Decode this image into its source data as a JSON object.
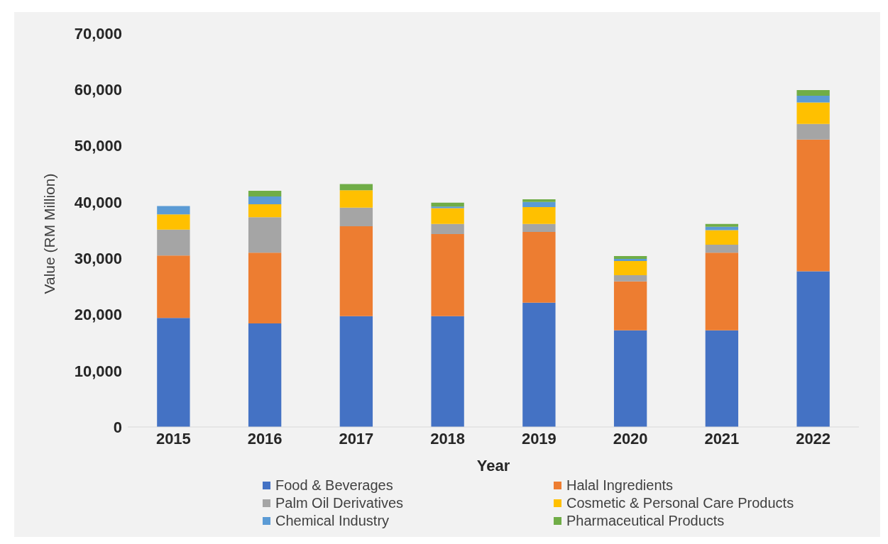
{
  "chart_data": {
    "type": "bar",
    "stacked": true,
    "xlabel": "Year",
    "ylabel": "Value (RM Million)",
    "categories": [
      "2015",
      "2016",
      "2017",
      "2018",
      "2019",
      "2020",
      "2021",
      "2022"
    ],
    "series": [
      {
        "name": "Food & Beverages",
        "color": "#4472c4",
        "values": [
          19400,
          18400,
          19700,
          19700,
          22100,
          17200,
          17200,
          27700
        ]
      },
      {
        "name": "Halal Ingredients",
        "color": "#ed7d31",
        "values": [
          11100,
          12600,
          16000,
          14600,
          12600,
          8700,
          13800,
          23400
        ]
      },
      {
        "name": "Palm Oil Derivatives",
        "color": "#a5a5a5",
        "values": [
          4600,
          6300,
          3300,
          1800,
          1400,
          1100,
          1400,
          2800
        ]
      },
      {
        "name": "Cosmetic & Personal Care Products",
        "color": "#ffc000",
        "values": [
          2700,
          2300,
          3100,
          2800,
          3000,
          2500,
          2600,
          3800
        ]
      },
      {
        "name": "Chemical Industry",
        "color": "#5b9bd5",
        "values": [
          1500,
          1400,
          0,
          300,
          900,
          400,
          600,
          1200
        ]
      },
      {
        "name": "Pharmaceutical Products",
        "color": "#70ad47",
        "values": [
          0,
          1000,
          1100,
          700,
          500,
          500,
          500,
          1000
        ]
      }
    ],
    "ylim": [
      0,
      70000
    ],
    "yticks": [
      0,
      {
        "value": 10000,
        "label": "10,000"
      },
      {
        "value": 20000,
        "label": "20,000"
      },
      {
        "value": 30000,
        "label": "30,000"
      },
      {
        "value": 40000,
        "label": "40,000"
      },
      {
        "value": 50000,
        "label": "50,000"
      },
      {
        "value": 60000,
        "label": "60,000"
      },
      {
        "value": 70000,
        "label": "70,000"
      }
    ],
    "grid": false,
    "legend": "bottom"
  }
}
